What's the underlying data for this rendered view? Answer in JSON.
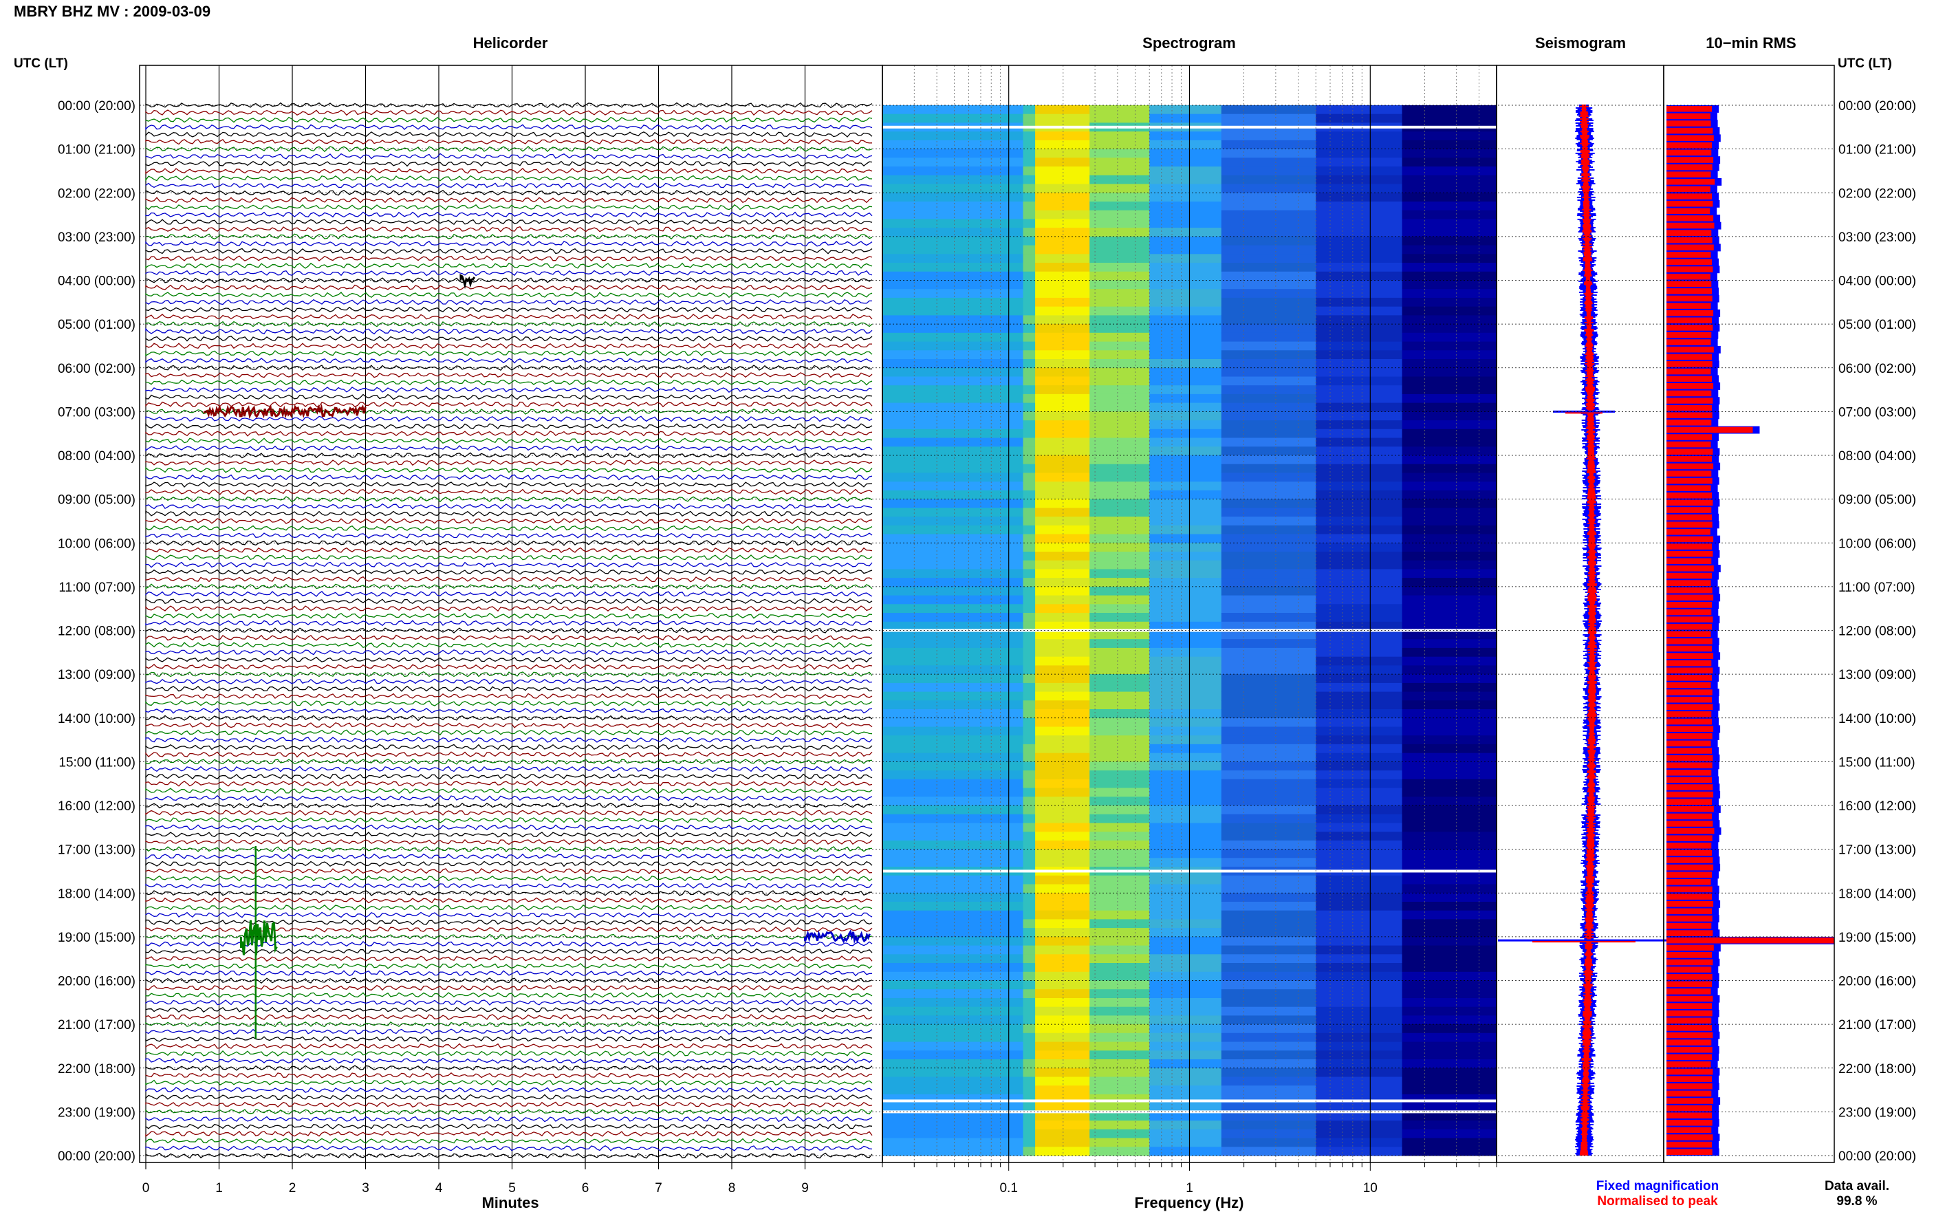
{
  "header": {
    "station_title": "MBRY BHZ MV : 2009-03-09",
    "left_axis_label": "UTC (LT)",
    "right_axis_label": "UTC (LT)"
  },
  "panels": {
    "helicorder": "Helicorder",
    "spectrogram": "Spectrogram",
    "seismogram": "Seismogram",
    "rms": "10−min RMS"
  },
  "time_ticks": [
    "00:00 (20:00)",
    "01:00 (21:00)",
    "02:00 (22:00)",
    "03:00 (23:00)",
    "04:00 (00:00)",
    "05:00 (01:00)",
    "06:00 (02:00)",
    "07:00 (03:00)",
    "08:00 (04:00)",
    "09:00 (05:00)",
    "10:00 (06:00)",
    "11:00 (07:00)",
    "12:00 (08:00)",
    "13:00 (09:00)",
    "14:00 (10:00)",
    "15:00 (11:00)",
    "16:00 (12:00)",
    "17:00 (13:00)",
    "18:00 (14:00)",
    "19:00 (15:00)",
    "20:00 (16:00)",
    "21:00 (17:00)",
    "22:00 (18:00)",
    "23:00 (19:00)",
    "00:00 (20:00)"
  ],
  "legend": {
    "fixed": "Fixed magnification",
    "normalised": "Normalised to peak",
    "fixed_color": "#0000ff",
    "normalised_color": "#ff0000"
  },
  "data_avail": {
    "label": "Data avail.",
    "value": "99.8 %"
  },
  "chart_data": [
    {
      "type": "line",
      "panel": "helicorder",
      "title": "Helicorder",
      "xlabel": "Minutes",
      "x_ticks": [
        "0",
        "1",
        "2",
        "3",
        "4",
        "5",
        "6",
        "7",
        "8",
        "9"
      ],
      "xlim": [
        0,
        10
      ],
      "lines_per_hour": 6,
      "line_colors": [
        "#000000",
        "#8b0000",
        "#008000",
        "#0000cd"
      ],
      "events": [
        {
          "time": "07:00",
          "minute_start": 0.8,
          "minute_end": 3.0,
          "color": "#8b0000"
        },
        {
          "time": "04:00",
          "minute_start": 4.3,
          "minute_end": 4.5,
          "color": "#000000"
        },
        {
          "time": "19:00",
          "minute_start": 1.3,
          "minute_end": 1.8,
          "color": "#008000"
        },
        {
          "time": "19:00",
          "minute_start": 9.0,
          "minute_end": 9.9,
          "color": "#0000cd"
        }
      ]
    },
    {
      "type": "heatmap",
      "panel": "spectrogram",
      "title": "Spectrogram",
      "xlabel": "Frequency (Hz)",
      "x_scale": "log",
      "x_ticks": [
        "0.1",
        "1",
        "10"
      ],
      "xlim": [
        0.02,
        50
      ],
      "colormap": "jet",
      "dominant_band_hz": [
        0.12,
        0.3
      ],
      "gaps_utc": [
        "00:30",
        "12:00",
        "17:30",
        "22:45",
        "23:00"
      ]
    },
    {
      "type": "line",
      "panel": "seismogram",
      "title": "Seismogram",
      "series": [
        {
          "name": "Fixed magnification",
          "color": "#0000ff"
        },
        {
          "name": "Normalised to peak",
          "color": "#ff0000"
        }
      ],
      "events_utc": [
        "07:00",
        "19:05"
      ]
    },
    {
      "type": "bar",
      "panel": "rms",
      "title": "10−min RMS",
      "orientation": "horizontal",
      "bins_per_hour": 6,
      "series": [
        {
          "name": "Fixed magnification",
          "color": "#0000ff"
        },
        {
          "name": "Normalised to peak",
          "color": "#ff0000"
        }
      ],
      "relative_rms_values": [
        1.0,
        0.97,
        0.98,
        1.02,
        1.04,
        1.0,
        0.99,
        1.03,
        1.01,
        0.98,
        1.06,
        0.97,
        1.0,
        1.02,
        0.96,
        1.03,
        1.05,
        0.99,
        1.01,
        1.04,
        0.98,
        1.0,
        1.02,
        0.97,
        0.99,
        1.0,
        1.01,
        0.98,
        1.03,
        1.0,
        1.02,
        0.99,
        0.98,
        1.04,
        1.0,
        1.01,
        0.98,
        1.0,
        1.03,
        0.99,
        1.02,
        1.0,
        1.01,
        0.99,
        1.85,
        1.0,
        0.98,
        1.02,
        1.0,
        1.03,
        0.99,
        1.01,
        0.98,
        1.0,
        1.02,
        0.99,
        1.0,
        1.01,
        0.97,
        1.03,
        1.0,
        1.02,
        0.99,
        1.04,
        1.0,
        0.98,
        1.01,
        1.03,
        1.0,
        0.99,
        1.02,
        1.0,
        0.98,
        1.01,
        1.0,
        1.03,
        0.99,
        1.02,
        1.0,
        0.98,
        1.01,
        1.0,
        1.02,
        0.99,
        1.0,
        1.03,
        1.01,
        0.98,
        1.0,
        1.02,
        1.01,
        0.99,
        1.0,
        1.02,
        1.03,
        1.0,
        1.04,
        1.0,
        1.02,
        1.05,
        1.01,
        0.99,
        1.0,
        1.02,
        1.03,
        1.0,
        0.98,
        1.01,
        1.0,
        1.03,
        1.0,
        1.01,
        0.99,
        1.02,
        3.6,
        1.04,
        1.0,
        1.02,
        0.99,
        1.01,
        1.0,
        0.98,
        1.02,
        1.0,
        1.01,
        0.99,
        1.0,
        1.02,
        0.99,
        1.01,
        1.0,
        0.98,
        1.02,
        1.0,
        1.01,
        0.99,
        1.03,
        1.0,
        1.0,
        1.01,
        0.99,
        1.02,
        1.0,
        1.01
      ]
    }
  ]
}
